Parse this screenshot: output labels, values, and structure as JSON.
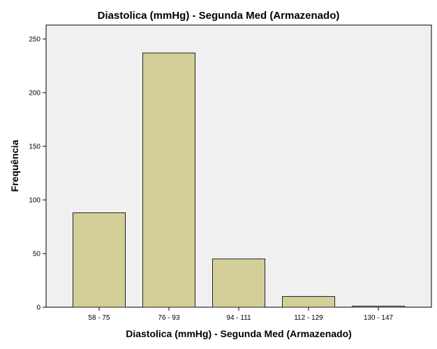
{
  "chart_data": {
    "type": "bar",
    "title": "Diastolica (mmHg) - Segunda Med (Armazenado)",
    "xlabel": "Diastolica (mmHg) - Segunda Med (Armazenado)",
    "ylabel": "Frequência",
    "categories": [
      "58 - 75",
      "76 - 93",
      "94 - 111",
      "112 - 129",
      "130 - 147"
    ],
    "values": [
      88,
      237,
      45,
      10,
      1
    ],
    "ylim": [
      0,
      263
    ],
    "yticks": [
      "0",
      "50",
      "100",
      "150",
      "200",
      "250"
    ],
    "grid": false,
    "legend": "none",
    "colors": {
      "bar_fill": "#d4cf98",
      "bar_stroke": "#222222",
      "plot_bg": "#f0f0f0",
      "page_bg": "#ffffff"
    }
  }
}
